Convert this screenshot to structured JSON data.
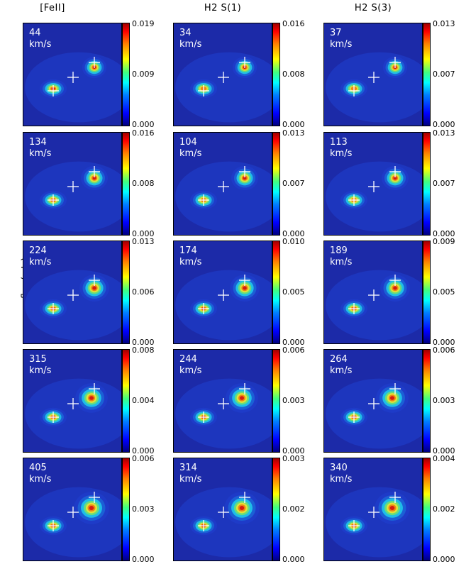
{
  "figure": {
    "columns": [
      "[FeII]",
      "H2 S(1)",
      "H2 S(3)"
    ],
    "ylabel": "flux (mJy)"
  },
  "chart_data": {
    "type": "heatmap",
    "colormap": "rainbow (blue-cyan-green-yellow-red)",
    "ylabel": "flux (mJy)",
    "columns": [
      {
        "title": "[FeII]",
        "panels": [
          {
            "velocity": "44",
            "unit": "km/s",
            "cbar": [
              "0.019",
              "0.009",
              "0.000"
            ]
          },
          {
            "velocity": "134",
            "unit": "km/s",
            "cbar": [
              "0.016",
              "0.008",
              "0.000"
            ]
          },
          {
            "velocity": "224",
            "unit": "km/s",
            "cbar": [
              "0.013",
              "0.006",
              "0.000"
            ]
          },
          {
            "velocity": "315",
            "unit": "km/s",
            "cbar": [
              "0.008",
              "0.004",
              "0.000"
            ]
          },
          {
            "velocity": "405",
            "unit": "km/s",
            "cbar": [
              "0.006",
              "0.003",
              "0.000"
            ]
          }
        ]
      },
      {
        "title": "H2 S(1)",
        "panels": [
          {
            "velocity": "34",
            "unit": "km/s",
            "cbar": [
              "0.016",
              "0.008",
              "0.000"
            ]
          },
          {
            "velocity": "104",
            "unit": "km/s",
            "cbar": [
              "0.013",
              "0.007",
              "0.000"
            ]
          },
          {
            "velocity": "174",
            "unit": "km/s",
            "cbar": [
              "0.010",
              "0.005",
              "0.000"
            ]
          },
          {
            "velocity": "244",
            "unit": "km/s",
            "cbar": [
              "0.006",
              "0.003",
              "0.000"
            ]
          },
          {
            "velocity": "314",
            "unit": "km/s",
            "cbar": [
              "0.003",
              "0.002",
              "0.000"
            ]
          }
        ]
      },
      {
        "title": "H2 S(3)",
        "panels": [
          {
            "velocity": "37",
            "unit": "km/s",
            "cbar": [
              "0.013",
              "0.007",
              "0.000"
            ]
          },
          {
            "velocity": "113",
            "unit": "km/s",
            "cbar": [
              "0.013",
              "0.007",
              "0.000"
            ]
          },
          {
            "velocity": "189",
            "unit": "km/s",
            "cbar": [
              "0.009",
              "0.005",
              "0.000"
            ]
          },
          {
            "velocity": "264",
            "unit": "km/s",
            "cbar": [
              "0.006",
              "0.003",
              "0.000"
            ]
          },
          {
            "velocity": "340",
            "unit": "km/s",
            "cbar": [
              "0.004",
              "0.002",
              "0.000"
            ]
          }
        ]
      }
    ]
  }
}
